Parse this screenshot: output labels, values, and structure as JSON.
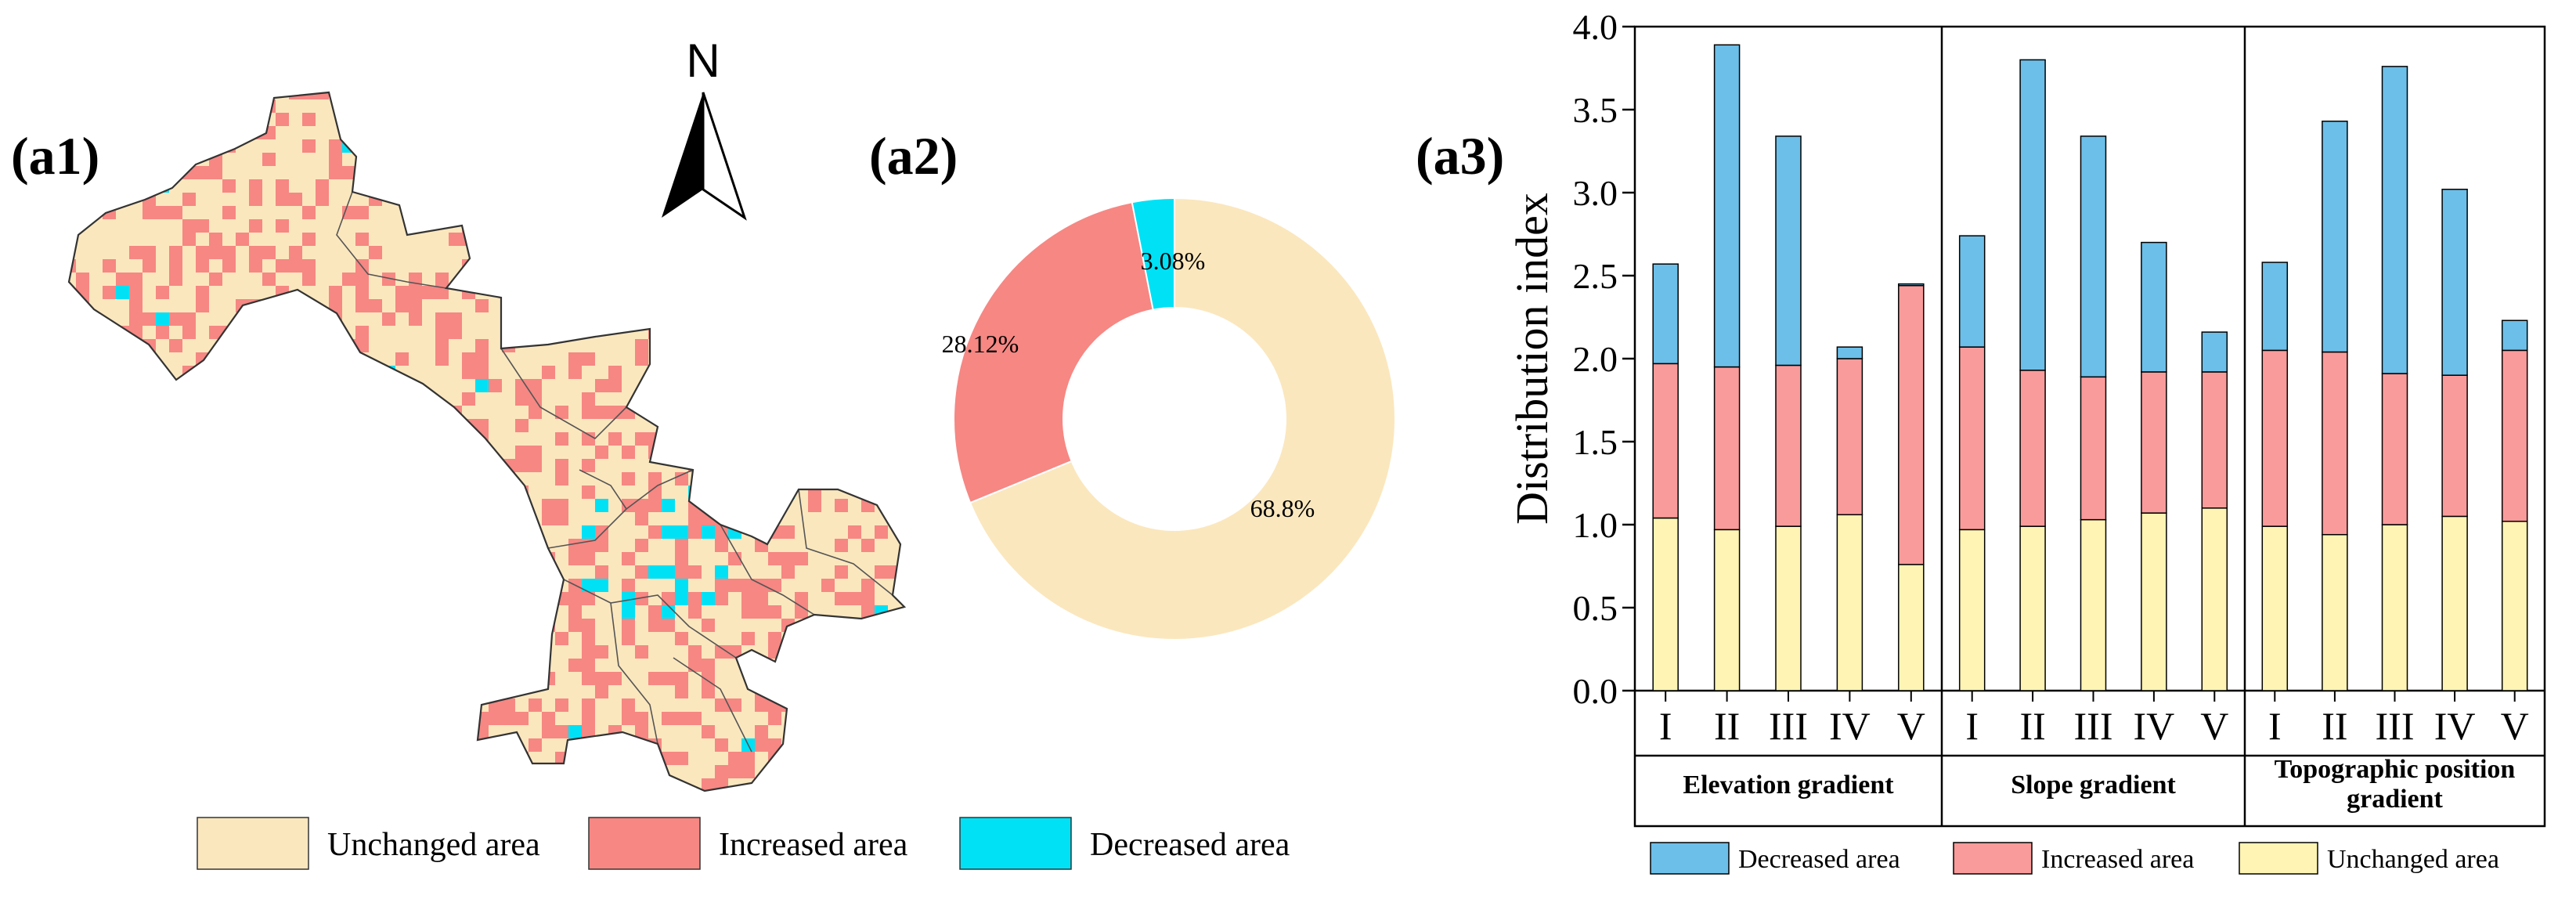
{
  "panels": {
    "a1_label": "(a1)",
    "a2_label": "(a2)",
    "a3_label": "(a3)",
    "north_label": "N"
  },
  "colors": {
    "unchanged_map": "#FBE7BE",
    "increased_map": "#F68783",
    "decreased_map": "#00E1F5",
    "unchanged_bar": "#FFF4B3",
    "increased_bar": "#FA9B9B",
    "decreased_bar": "#6CBFE8"
  },
  "map_legend": [
    {
      "label": "Unchanged area",
      "color": "#FBE7BE"
    },
    {
      "label": "Increased area",
      "color": "#F68783"
    },
    {
      "label": "Decreased area",
      "color": "#00E1F5"
    }
  ],
  "chart_data": [
    {
      "type": "pie",
      "variant": "donut",
      "title": "",
      "slices": [
        {
          "name": "Unchanged area",
          "value": 68.8,
          "label": "68.8%",
          "color": "#FBE7BE"
        },
        {
          "name": "Increased area",
          "value": 28.12,
          "label": "28.12%",
          "color": "#F68783"
        },
        {
          "name": "Decreased area",
          "value": 3.08,
          "label": "3.08%",
          "color": "#00E1F5"
        }
      ]
    },
    {
      "type": "bar",
      "stacked": true,
      "ylabel": "Distribution index",
      "ylim": [
        0,
        4.0
      ],
      "yticks": [
        "0.0",
        "0.5",
        "1.0",
        "1.5",
        "2.0",
        "2.5",
        "3.0",
        "3.5",
        "4.0"
      ],
      "groups": [
        {
          "name": "Elevation gradient",
          "categories": [
            "I",
            "II",
            "III",
            "IV",
            "V"
          ],
          "unchanged": [
            1.04,
            0.97,
            0.99,
            1.06,
            0.76
          ],
          "increased": [
            0.93,
            0.98,
            0.97,
            0.94,
            1.68
          ],
          "decreased": [
            0.6,
            1.94,
            1.38,
            0.07,
            0.01
          ]
        },
        {
          "name": "Slope gradient",
          "categories": [
            "I",
            "II",
            "III",
            "IV",
            "V"
          ],
          "unchanged": [
            0.97,
            0.99,
            1.03,
            1.07,
            1.1
          ],
          "increased": [
            1.1,
            0.94,
            0.86,
            0.85,
            0.82
          ],
          "decreased": [
            0.67,
            1.87,
            1.45,
            0.78,
            0.24
          ]
        },
        {
          "name": "Topographic position gradient",
          "categories": [
            "I",
            "II",
            "III",
            "IV",
            "V"
          ],
          "unchanged": [
            0.99,
            0.94,
            1.0,
            1.05,
            1.02
          ],
          "increased": [
            1.06,
            1.1,
            0.91,
            0.85,
            1.03
          ],
          "decreased": [
            0.53,
            1.39,
            1.85,
            1.12,
            0.18
          ]
        }
      ],
      "group_label_lines": [
        [
          "Elevation gradient"
        ],
        [
          "Slope gradient"
        ],
        [
          "Topographic position",
          "gradient"
        ]
      ],
      "legend": [
        {
          "label": "Decreased area",
          "color": "#6CBFE8"
        },
        {
          "label": "Increased area",
          "color": "#FA9B9B"
        },
        {
          "label": "Unchanged area",
          "color": "#FFF4B3"
        }
      ]
    }
  ]
}
